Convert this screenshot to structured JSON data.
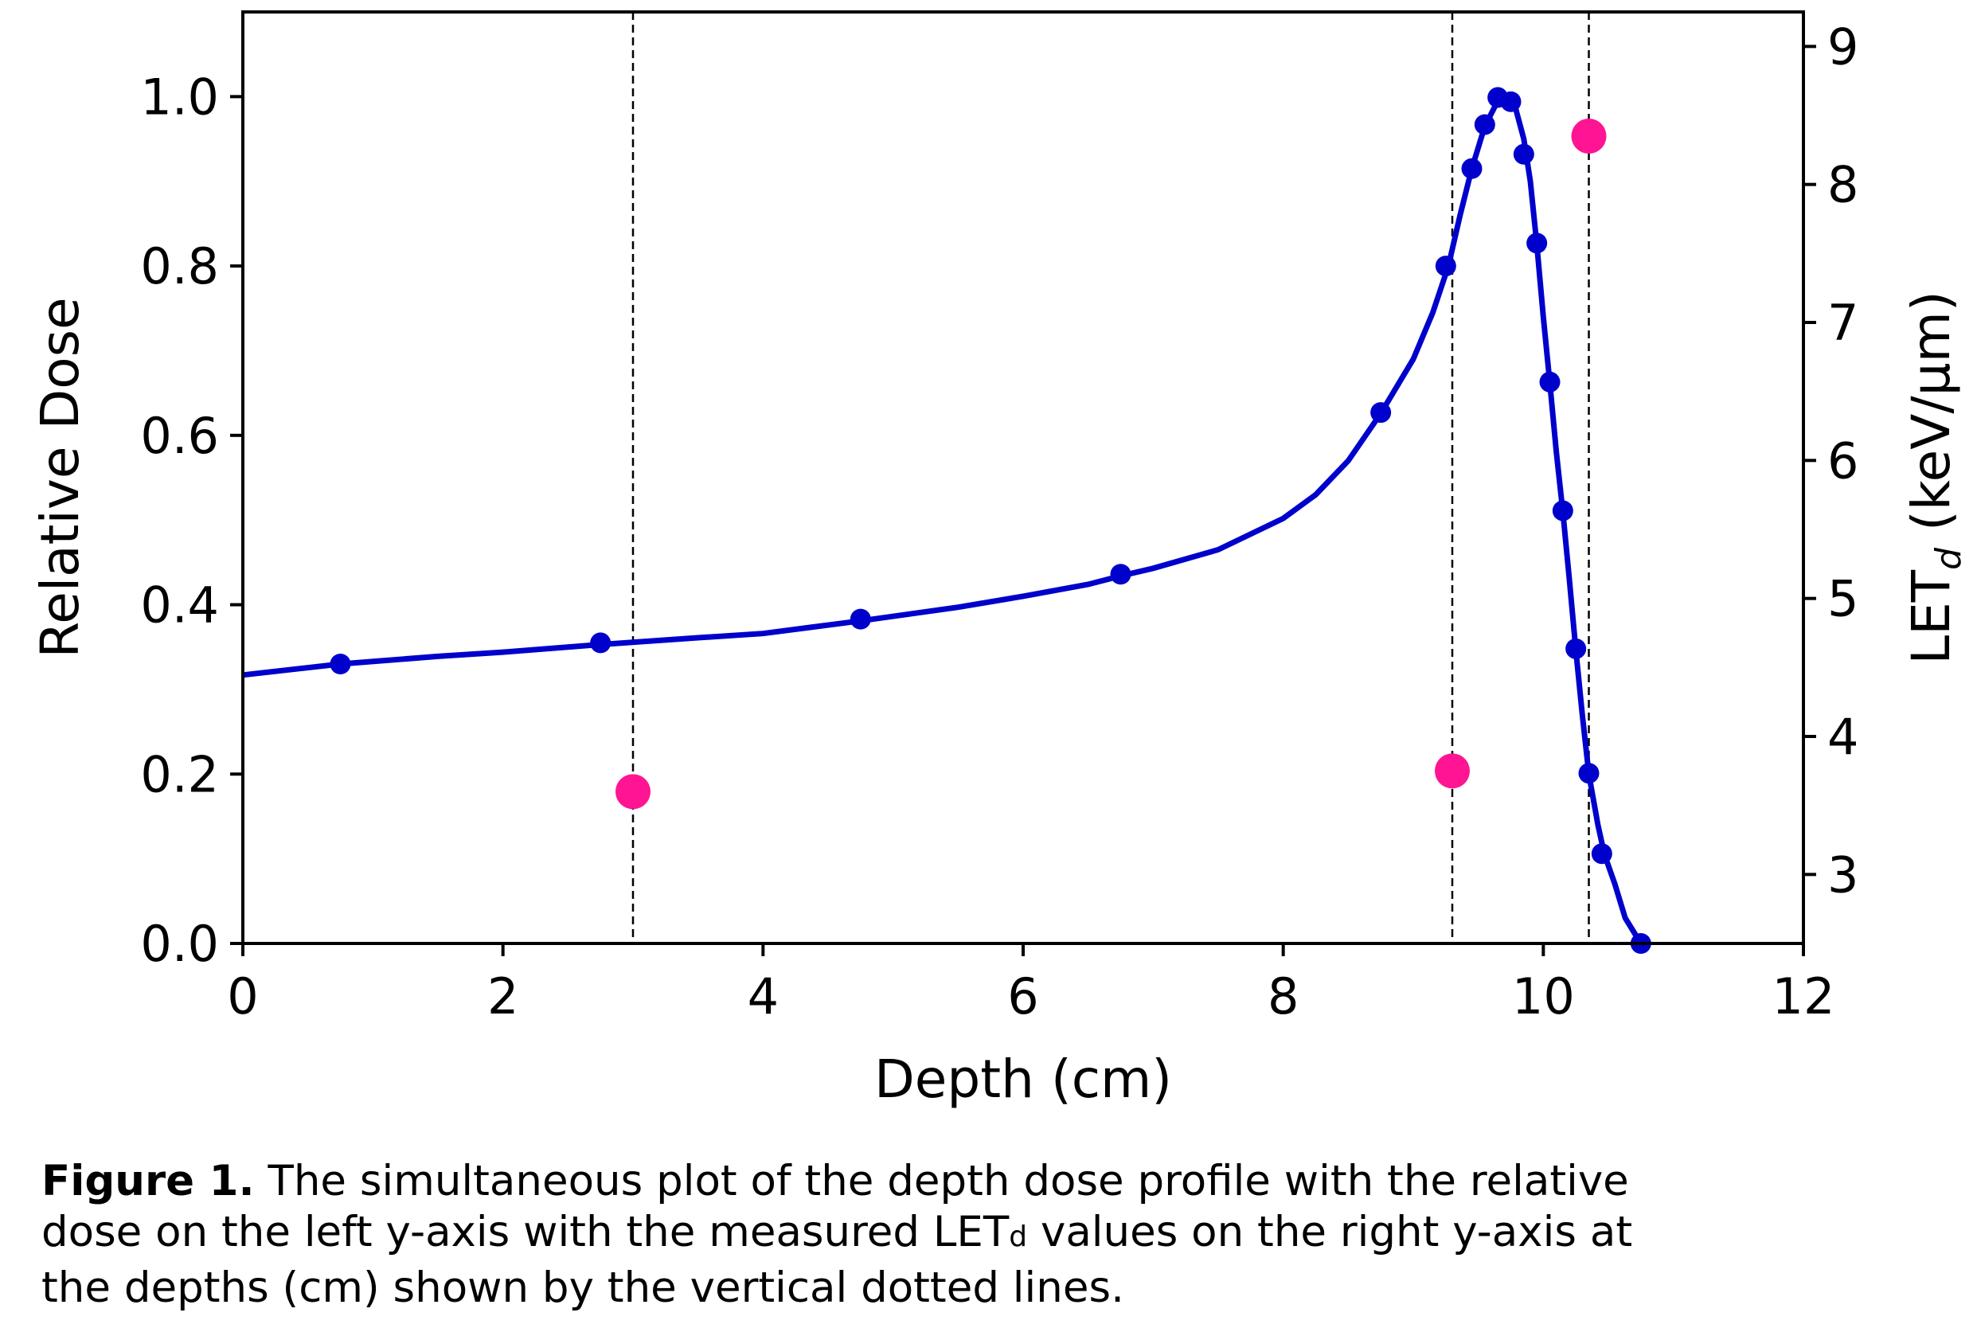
{
  "chart_data": {
    "type": "line",
    "xlabel": "Depth (cm)",
    "ylabel_left": "Relative Dose",
    "ylabel_right_main": "LET",
    "ylabel_right_sub": "d",
    "ylabel_right_unit": " (keV/μm)",
    "xlim": [
      0,
      12
    ],
    "ylim_left": [
      0,
      1.1
    ],
    "ylim_right": [
      2.5,
      9.25
    ],
    "x_ticks": [
      "0",
      "2",
      "4",
      "6",
      "8",
      "10",
      "12"
    ],
    "y_left_ticks": [
      "0.0",
      "0.2",
      "0.4",
      "0.6",
      "0.8",
      "1.0"
    ],
    "y_right_ticks": [
      "3",
      "4",
      "5",
      "6",
      "7",
      "8",
      "9"
    ],
    "grid": false,
    "vertical_lines_x": [
      3.0,
      9.3,
      10.35
    ],
    "series": [
      {
        "axis": "left",
        "color": "#0000cc",
        "curve": [
          [
            0,
            0.317
          ],
          [
            0.75,
            0.33
          ],
          [
            1.5,
            0.339
          ],
          [
            2.0,
            0.344
          ],
          [
            2.75,
            0.353
          ],
          [
            3.5,
            0.361
          ],
          [
            4.0,
            0.366
          ],
          [
            4.75,
            0.381
          ],
          [
            5.5,
            0.397
          ],
          [
            6.0,
            0.41
          ],
          [
            6.5,
            0.424
          ],
          [
            6.75,
            0.434
          ],
          [
            7.0,
            0.443
          ],
          [
            7.5,
            0.465
          ],
          [
            8.0,
            0.502
          ],
          [
            8.25,
            0.53
          ],
          [
            8.5,
            0.57
          ],
          [
            8.75,
            0.626
          ],
          [
            9.0,
            0.69
          ],
          [
            9.15,
            0.745
          ],
          [
            9.27,
            0.8
          ],
          [
            9.36,
            0.86
          ],
          [
            9.45,
            0.915
          ],
          [
            9.55,
            0.965
          ],
          [
            9.65,
            0.995
          ],
          [
            9.72,
            0.998
          ],
          [
            9.78,
            0.99
          ],
          [
            9.85,
            0.95
          ],
          [
            9.9,
            0.9
          ],
          [
            9.95,
            0.825
          ],
          [
            10.0,
            0.74
          ],
          [
            10.05,
            0.662
          ],
          [
            10.1,
            0.58
          ],
          [
            10.15,
            0.51
          ],
          [
            10.2,
            0.43
          ],
          [
            10.25,
            0.346
          ],
          [
            10.3,
            0.27
          ],
          [
            10.35,
            0.2
          ],
          [
            10.42,
            0.14
          ],
          [
            10.47,
            0.105
          ],
          [
            10.55,
            0.07
          ],
          [
            10.63,
            0.03
          ],
          [
            10.75,
            0.0
          ]
        ],
        "points": [
          [
            0.75,
            0.33
          ],
          [
            2.75,
            0.355
          ],
          [
            4.75,
            0.383
          ],
          [
            6.75,
            0.436
          ],
          [
            8.75,
            0.627
          ],
          [
            9.25,
            0.8
          ],
          [
            9.45,
            0.915
          ],
          [
            9.55,
            0.967
          ],
          [
            9.65,
            0.999
          ],
          [
            9.75,
            0.994
          ],
          [
            9.85,
            0.932
          ],
          [
            9.95,
            0.827
          ],
          [
            10.05,
            0.663
          ],
          [
            10.15,
            0.511
          ],
          [
            10.25,
            0.348
          ],
          [
            10.35,
            0.201
          ],
          [
            10.45,
            0.106
          ],
          [
            10.75,
            0.0
          ]
        ]
      },
      {
        "axis": "right",
        "color": "#ff1493",
        "points": [
          [
            3.0,
            3.6
          ],
          [
            9.3,
            3.75
          ],
          [
            10.35,
            8.35
          ]
        ]
      }
    ]
  },
  "caption": {
    "label": "Figure 1.",
    "line1": " The simultaneous plot of the depth dose profile with the relative",
    "line2a": "dose on the left y-axis with the measured LET",
    "line2sub": "d",
    "line2b": " values on the right y-axis at",
    "line3": "the depths (cm) shown by the vertical dotted lines."
  }
}
